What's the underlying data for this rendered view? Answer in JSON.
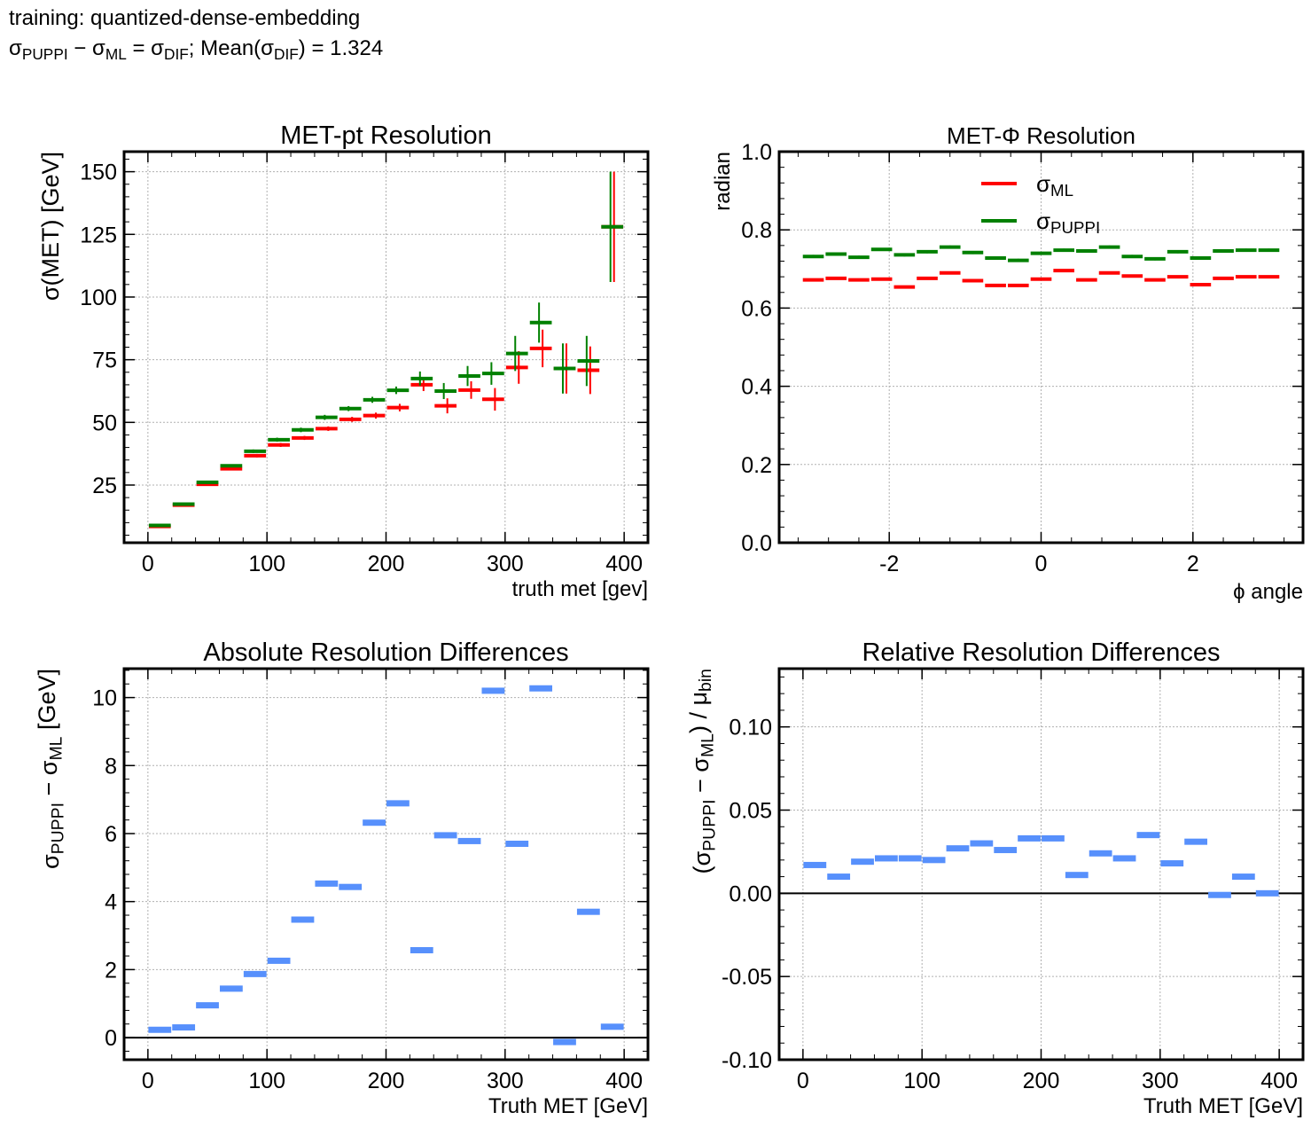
{
  "figure": {
    "line1": "training: quantized-dense-embedding",
    "line2_sigma_puppi": "σ",
    "sub_puppi": "PUPPI",
    "minus": " − σ",
    "sub_ml": "ML",
    "eq": " = σ",
    "sub_dif": "DIF",
    "mean_prefix": ";  Mean(σ",
    "mean_sub": "DIF",
    "mean_suffix": ") = 1.324"
  },
  "colors": {
    "ml": "#ff0000",
    "puppi": "#008000",
    "diff": "#5790fc",
    "grid": "#b0b0b0"
  },
  "chart_data": [
    {
      "id": "met_pt_resolution",
      "type": "errorbar",
      "title": "MET-pt Resolution",
      "xlabel": "truth met [gev]",
      "ylabel": "σ(MET) [GeV]",
      "xlim": [
        -20,
        420
      ],
      "ylim": [
        2,
        158
      ],
      "xticks": [
        0,
        100,
        200,
        300,
        400
      ],
      "yticks": [
        25,
        50,
        75,
        100,
        125,
        150
      ],
      "bin_centers": [
        10,
        30,
        50,
        70,
        90,
        110,
        130,
        150,
        170,
        190,
        210,
        230,
        250,
        270,
        290,
        310,
        330,
        350,
        370,
        390
      ],
      "bin_halfwidth": 10,
      "series": [
        {
          "name": "ML",
          "color": "ml",
          "values": [
            8.5,
            17.0,
            25.3,
            31.5,
            36.7,
            41.0,
            43.8,
            47.5,
            51.2,
            52.7,
            55.9,
            65.0,
            56.6,
            62.9,
            59.2,
            71.9,
            79.5,
            71.5,
            70.8,
            128.0
          ],
          "errors": [
            0.3,
            0.4,
            0.5,
            0.6,
            0.7,
            0.8,
            0.8,
            0.9,
            1.0,
            1.2,
            1.5,
            2.5,
            3.0,
            3.5,
            4.5,
            6.5,
            7.5,
            10.0,
            9.5,
            22.0
          ]
        },
        {
          "name": "PUPPI",
          "color": "puppi",
          "values": [
            8.9,
            17.4,
            26.1,
            32.7,
            38.5,
            43.1,
            47.0,
            52.0,
            55.5,
            59.0,
            62.8,
            67.5,
            62.5,
            68.5,
            69.5,
            77.5,
            89.8,
            71.5,
            74.5,
            128.0
          ],
          "errors": [
            0.3,
            0.4,
            0.5,
            0.6,
            0.7,
            0.8,
            0.9,
            1.0,
            1.0,
            1.2,
            1.5,
            2.8,
            3.2,
            4.0,
            4.5,
            7.0,
            8.0,
            10.0,
            10.0,
            22.0
          ]
        }
      ]
    },
    {
      "id": "met_phi_resolution",
      "type": "errorbar",
      "title": "MET-Φ Resolution",
      "xlabel": "ϕ angle",
      "ylabel": "radian",
      "xlim": [
        -3.45,
        3.45
      ],
      "ylim": [
        0.0,
        1.0
      ],
      "xticks": [
        -2,
        0,
        2
      ],
      "xtick_labels": [
        "-2",
        "0",
        "2"
      ],
      "yticks": [
        0.0,
        0.2,
        0.4,
        0.6,
        0.8,
        1.0
      ],
      "ytick_labels": [
        "0.0",
        "0.2",
        "0.4",
        "0.6",
        "0.8",
        "1.0"
      ],
      "bin_centers": [
        -3.0,
        -2.7,
        -2.4,
        -2.1,
        -1.8,
        -1.5,
        -1.2,
        -0.9,
        -0.6,
        -0.3,
        0.0,
        0.3,
        0.6,
        0.9,
        1.2,
        1.5,
        1.8,
        2.1,
        2.4,
        2.7,
        3.0
      ],
      "bin_halfwidth": 0.15,
      "legend": {
        "loc": "upper center",
        "entries": [
          {
            "series": "ML",
            "label": "σ",
            "sub": "ML"
          },
          {
            "series": "PUPPI",
            "label": "σ",
            "sub": "PUPPI"
          }
        ]
      },
      "series": [
        {
          "name": "ML",
          "color": "ml",
          "values": [
            0.672,
            0.676,
            0.672,
            0.674,
            0.654,
            0.676,
            0.69,
            0.67,
            0.658,
            0.658,
            0.674,
            0.696,
            0.672,
            0.69,
            0.682,
            0.672,
            0.68,
            0.66,
            0.676,
            0.68,
            0.68
          ],
          "errors": [
            0.003,
            0.003,
            0.003,
            0.003,
            0.003,
            0.003,
            0.003,
            0.003,
            0.003,
            0.003,
            0.003,
            0.003,
            0.003,
            0.003,
            0.003,
            0.003,
            0.003,
            0.003,
            0.003,
            0.003,
            0.003
          ]
        },
        {
          "name": "PUPPI",
          "color": "puppi",
          "values": [
            0.732,
            0.738,
            0.73,
            0.75,
            0.736,
            0.744,
            0.756,
            0.742,
            0.728,
            0.722,
            0.74,
            0.748,
            0.746,
            0.756,
            0.732,
            0.726,
            0.744,
            0.728,
            0.746,
            0.748,
            0.748
          ],
          "errors": [
            0.004,
            0.004,
            0.004,
            0.004,
            0.004,
            0.004,
            0.004,
            0.004,
            0.004,
            0.004,
            0.004,
            0.004,
            0.004,
            0.004,
            0.004,
            0.004,
            0.004,
            0.004,
            0.004,
            0.004,
            0.004
          ]
        }
      ]
    },
    {
      "id": "absolute_differences",
      "type": "bar",
      "title": "Absolute Resolution Differences",
      "xlabel": "Truth MET [GeV]",
      "ylabel": "σPUPPI − σML [GeV]",
      "xlim": [
        -20,
        420
      ],
      "ylim": [
        -0.65,
        10.85
      ],
      "xticks": [
        0,
        100,
        200,
        300,
        400
      ],
      "yticks": [
        0,
        2,
        4,
        6,
        8,
        10
      ],
      "hline": 0,
      "bin_centers": [
        10,
        30,
        50,
        70,
        90,
        110,
        130,
        150,
        170,
        190,
        210,
        230,
        250,
        270,
        290,
        310,
        330,
        350,
        370,
        390
      ],
      "bin_halfwidth": 10,
      "series": [
        {
          "name": "diff",
          "color": "diff",
          "values": [
            0.23,
            0.3,
            0.95,
            1.44,
            1.87,
            2.26,
            3.47,
            4.53,
            4.43,
            6.32,
            6.89,
            2.57,
            5.95,
            5.78,
            10.2,
            5.7,
            10.27,
            -0.13,
            3.7,
            0.32
          ]
        }
      ]
    },
    {
      "id": "relative_differences",
      "type": "bar",
      "title": "Relative Resolution Differences",
      "xlabel": "Truth MET [GeV]",
      "ylabel": "(σPUPPI − σML) / μbin",
      "xlim": [
        -20,
        420
      ],
      "ylim": [
        -0.1,
        0.135
      ],
      "xticks": [
        0,
        100,
        200,
        300,
        400
      ],
      "yticks": [
        -0.1,
        -0.05,
        0.0,
        0.05,
        0.1
      ],
      "ytick_labels": [
        "-0.10",
        "-0.05",
        "0.00",
        "0.05",
        "0.10"
      ],
      "hline": 0,
      "bin_centers": [
        10,
        30,
        50,
        70,
        90,
        110,
        130,
        150,
        170,
        190,
        210,
        230,
        250,
        270,
        290,
        310,
        330,
        350,
        370,
        390
      ],
      "bin_halfwidth": 10,
      "series": [
        {
          "name": "rel",
          "color": "diff",
          "values": [
            0.017,
            0.01,
            0.019,
            0.021,
            0.021,
            0.02,
            0.027,
            0.03,
            0.026,
            0.033,
            0.033,
            0.011,
            0.024,
            0.021,
            0.035,
            0.018,
            0.031,
            -0.001,
            0.01,
            0.0
          ]
        }
      ]
    }
  ]
}
